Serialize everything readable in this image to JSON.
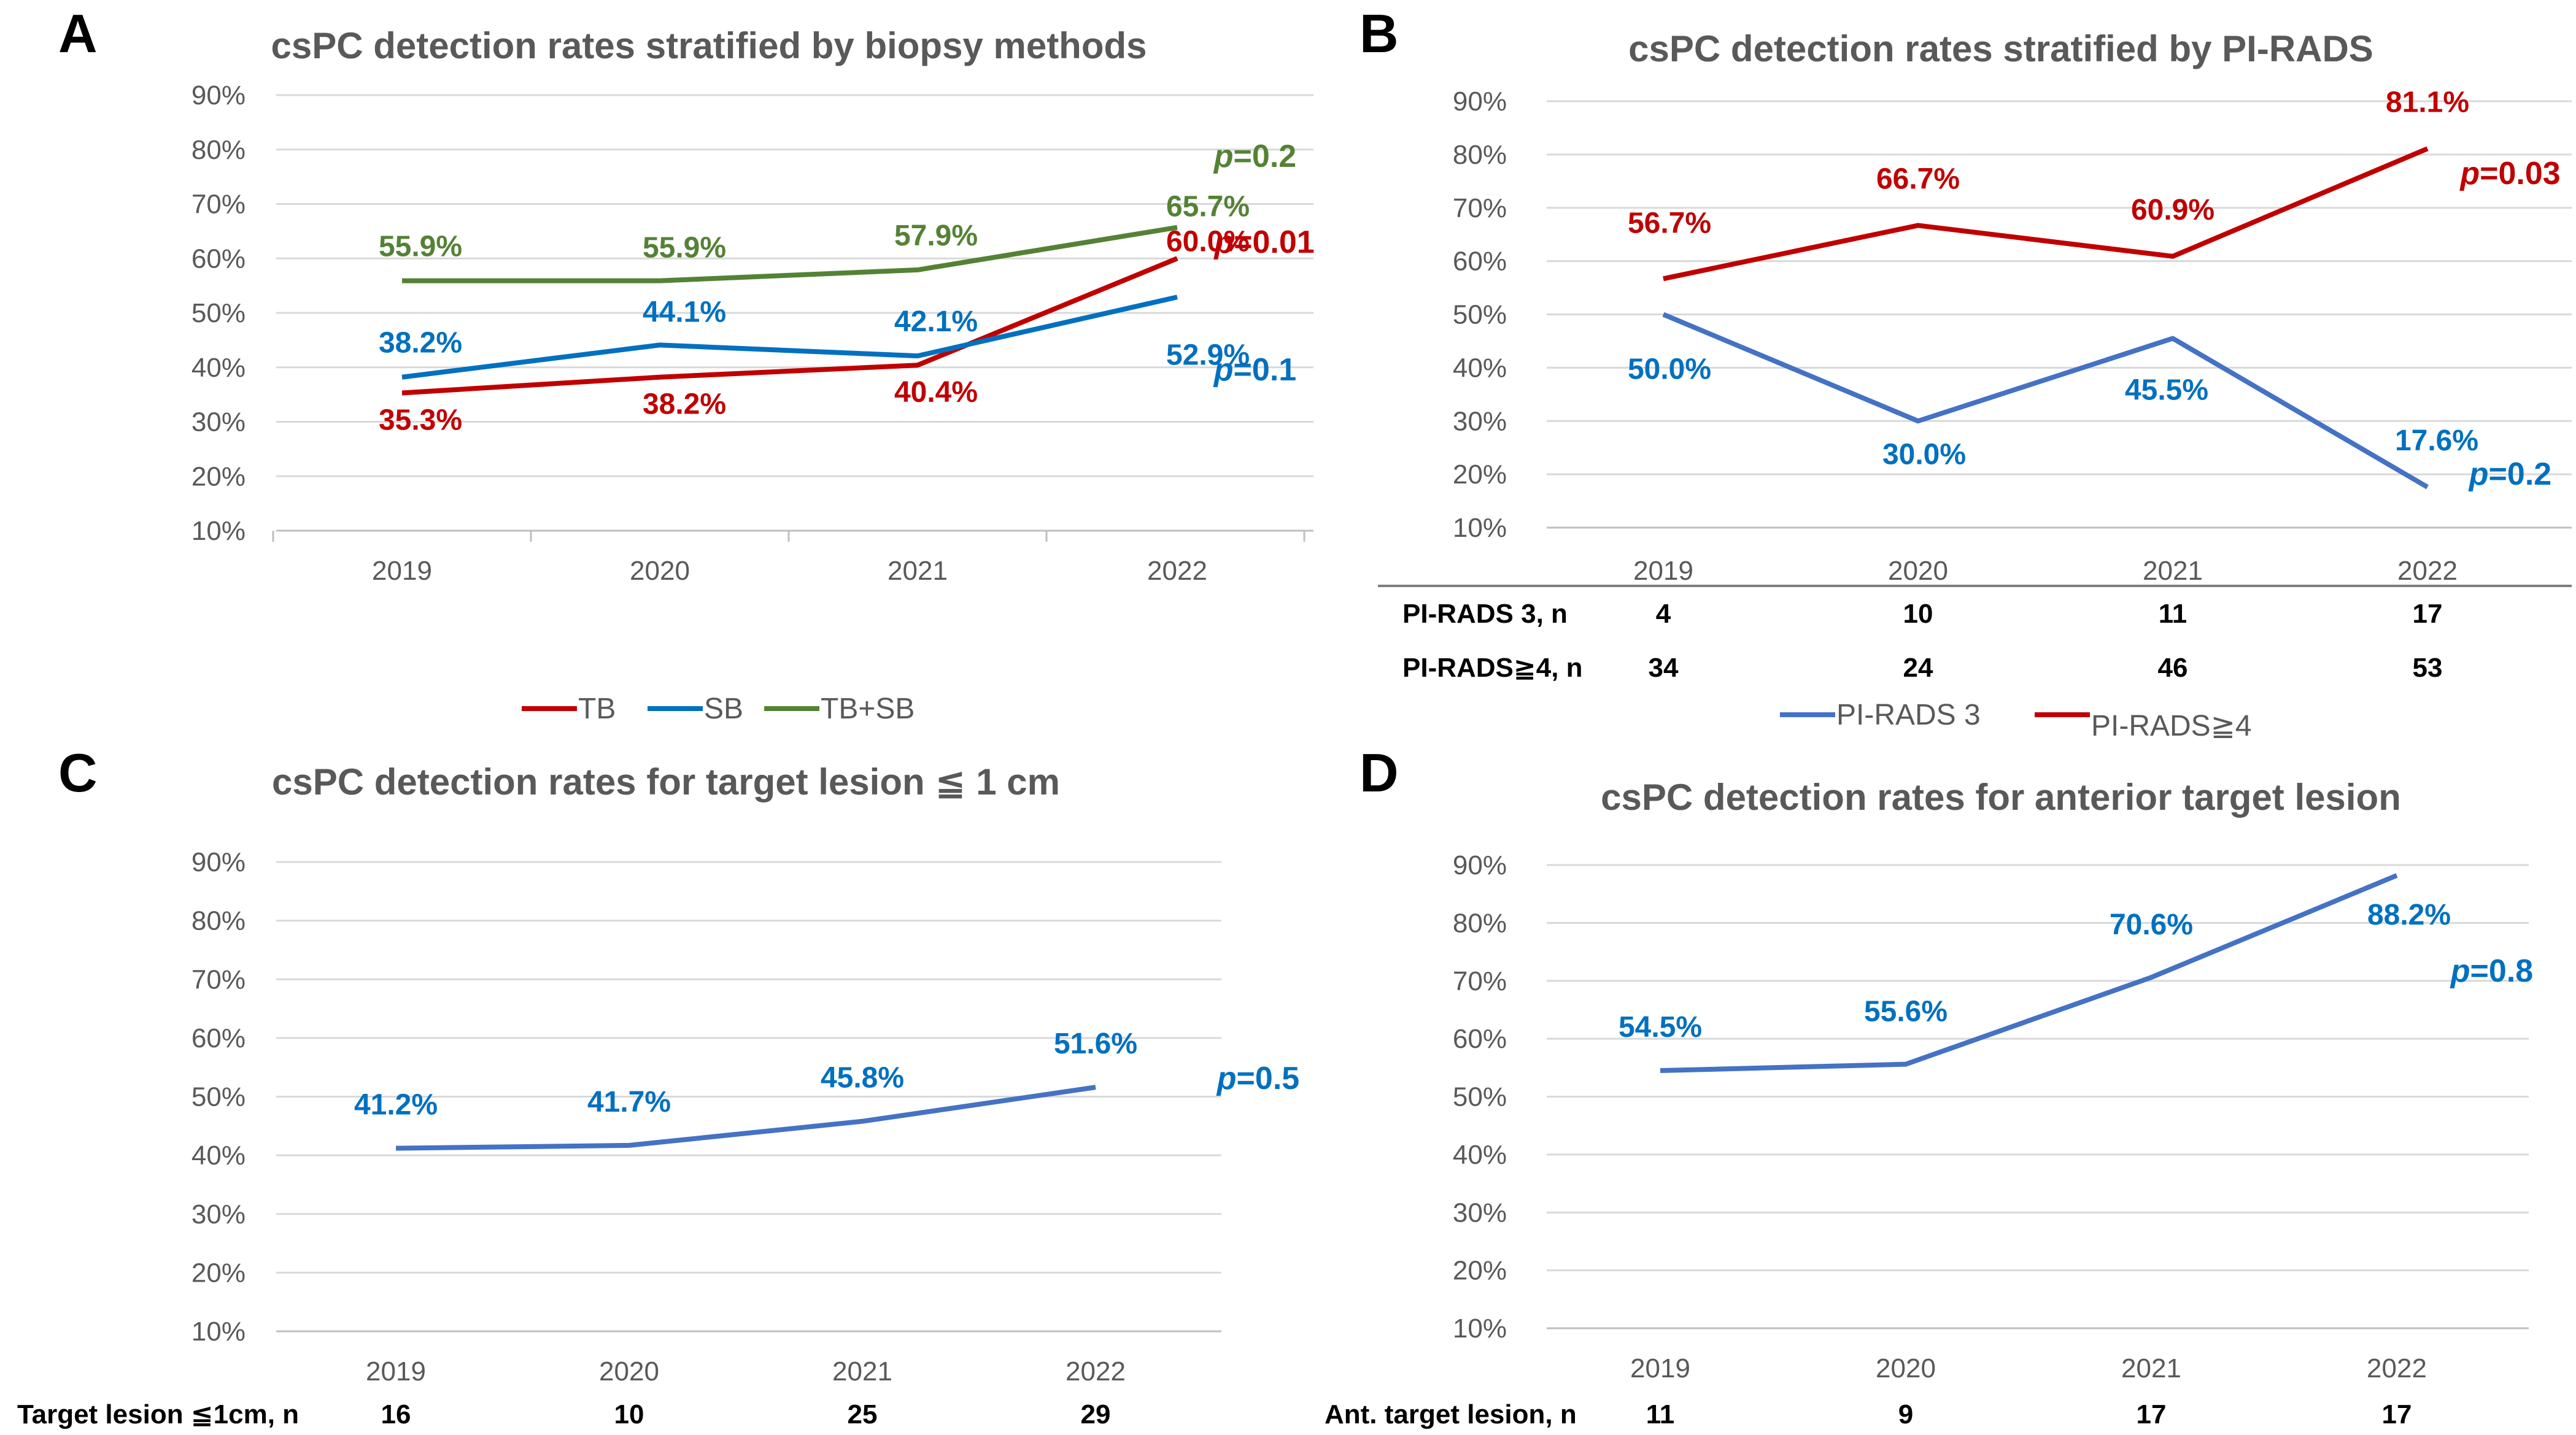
{
  "colors": {
    "tb": "#c00000",
    "sb": "#0070c0",
    "tbsb": "#548235",
    "pirads3": "#4472c4",
    "pirads4": "#c00000",
    "single": "#4472c4",
    "singleLabel": "#0070c0"
  },
  "chart_data": [
    {
      "panel": "A",
      "type": "line",
      "title": "csPC detection rates stratified by biopsy methods",
      "categories": [
        "2019",
        "2020",
        "2021",
        "2022"
      ],
      "ylim": [
        10,
        90
      ],
      "yticks": [
        "10%",
        "20%",
        "30%",
        "40%",
        "50%",
        "60%",
        "70%",
        "80%",
        "90%"
      ],
      "series": [
        {
          "name": "TB",
          "values": [
            35.3,
            38.2,
            40.4,
            60.0
          ],
          "labels": [
            "35.3%",
            "38.2%",
            "40.4%",
            "60.0%"
          ],
          "p": "0.01"
        },
        {
          "name": "SB",
          "values": [
            38.2,
            44.1,
            42.1,
            52.9
          ],
          "labels": [
            "38.2%",
            "44.1%",
            "42.1%",
            "52.9%"
          ],
          "p": "0.1"
        },
        {
          "name": "TB+SB",
          "values": [
            55.9,
            55.9,
            57.9,
            65.7
          ],
          "labels": [
            "55.9%",
            "55.9%",
            "57.9%",
            "65.7%"
          ],
          "p": "0.2"
        }
      ],
      "legend": [
        "TB",
        "SB",
        "TB+SB"
      ]
    },
    {
      "panel": "B",
      "type": "line",
      "title": "csPC detection rates stratified by PI-RADS",
      "categories": [
        "2019",
        "2020",
        "2021",
        "2022"
      ],
      "ylim": [
        10,
        90
      ],
      "yticks": [
        "10%",
        "20%",
        "30%",
        "40%",
        "50%",
        "60%",
        "70%",
        "80%",
        "90%"
      ],
      "series": [
        {
          "name": "PI-RADS 3",
          "values": [
            50.0,
            30.0,
            45.5,
            17.6
          ],
          "labels": [
            "50.0%",
            "30.0%",
            "45.5%",
            "17.6%"
          ],
          "p": "0.2"
        },
        {
          "name": "PI-RADS≧4",
          "values": [
            56.7,
            66.7,
            60.9,
            81.1
          ],
          "labels": [
            "56.7%",
            "66.7%",
            "60.9%",
            "81.1%"
          ],
          "p": "0.03"
        }
      ],
      "table": [
        {
          "label": "PI-RADS 3, n",
          "values": [
            "4",
            "10",
            "11",
            "17"
          ]
        },
        {
          "label": "PI-RADS≧4, n",
          "values": [
            "34",
            "24",
            "46",
            "53"
          ]
        }
      ],
      "legend": [
        "PI-RADS 3",
        "PI-RADS≧4"
      ]
    },
    {
      "panel": "C",
      "type": "line",
      "title": "csPC detection rates for target lesion ≦ 1 cm",
      "categories": [
        "2019",
        "2020",
        "2021",
        "2022"
      ],
      "ylim": [
        10,
        90
      ],
      "yticks": [
        "10%",
        "20%",
        "30%",
        "40%",
        "50%",
        "60%",
        "70%",
        "80%",
        "90%"
      ],
      "series": [
        {
          "name": "Target lesion ≦1cm",
          "values": [
            41.2,
            41.7,
            45.8,
            51.6
          ],
          "labels": [
            "41.2%",
            "41.7%",
            "45.8%",
            "51.6%"
          ],
          "p": "0.5"
        }
      ],
      "table": [
        {
          "label": "Target lesion ≦1cm, n",
          "values": [
            "16",
            "10",
            "25",
            "29"
          ]
        }
      ]
    },
    {
      "panel": "D",
      "type": "line",
      "title": "csPC detection rates for anterior target lesion",
      "categories": [
        "2019",
        "2020",
        "2021",
        "2022"
      ],
      "ylim": [
        10,
        90
      ],
      "yticks": [
        "10%",
        "20%",
        "30%",
        "40%",
        "50%",
        "60%",
        "70%",
        "80%",
        "90%"
      ],
      "series": [
        {
          "name": "Ant. target lesion",
          "values": [
            54.5,
            55.6,
            70.6,
            88.2
          ],
          "labels": [
            "54.5%",
            "55.6%",
            "70.6%",
            "88.2%"
          ],
          "p": "0.8"
        }
      ],
      "table": [
        {
          "label": "Ant. target lesion, n",
          "values": [
            "11",
            "9",
            "17",
            "17"
          ]
        }
      ]
    }
  ]
}
